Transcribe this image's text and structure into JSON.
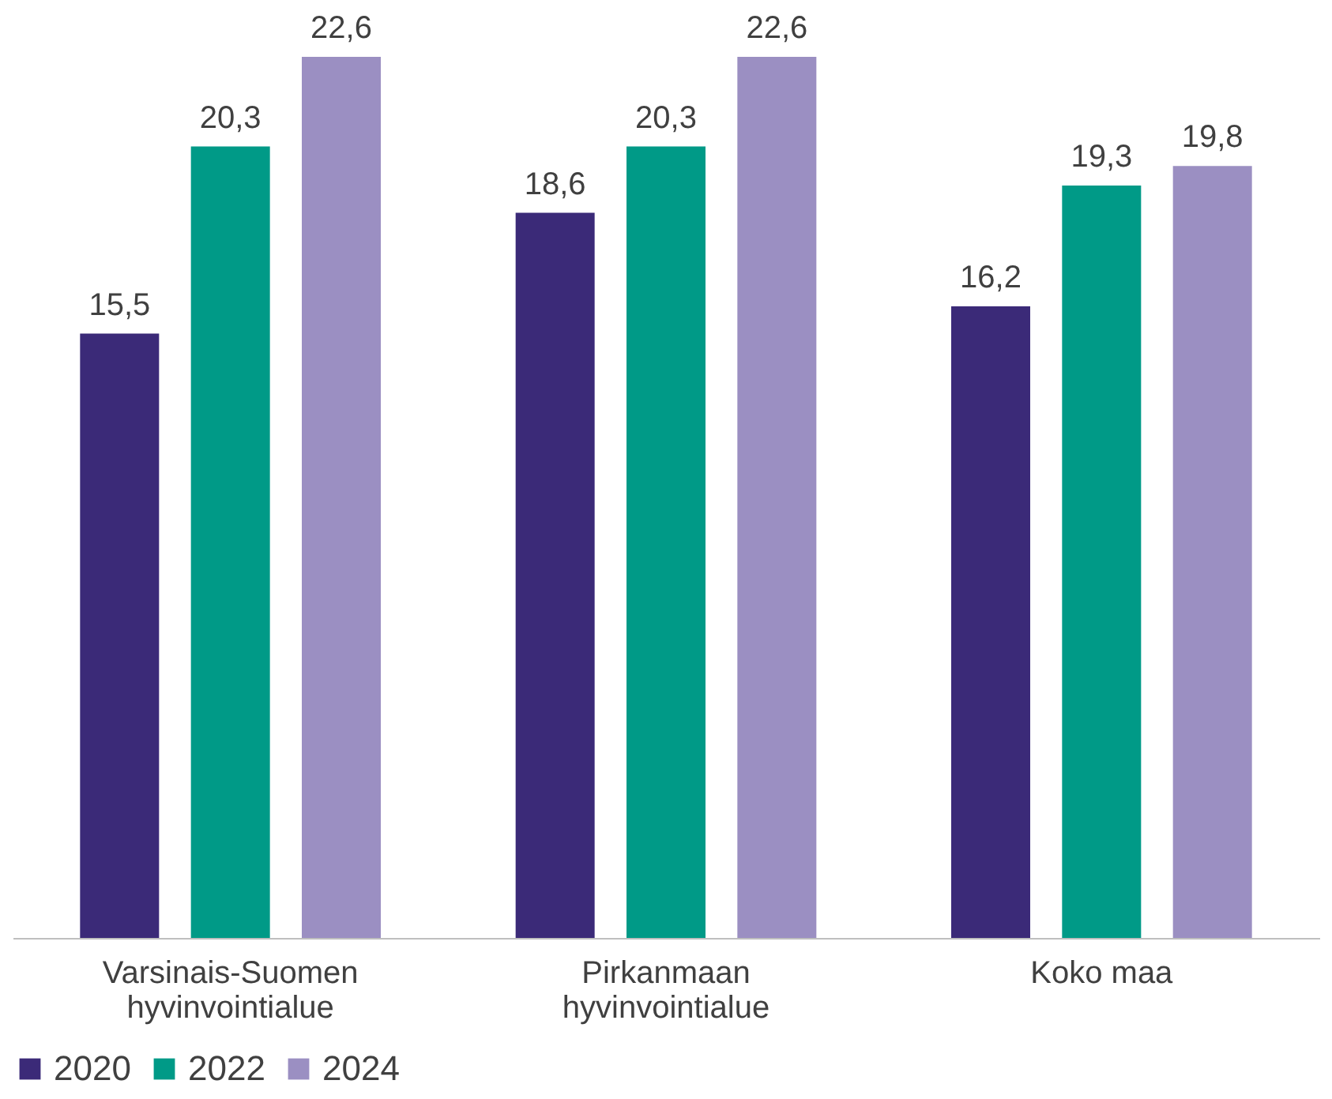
{
  "chart_data": {
    "type": "bar",
    "categories": [
      "Varsinais-Suomen hyvinvointialue",
      "Pirkanmaan hyvinvointialue",
      "Koko maa"
    ],
    "series": [
      {
        "name": "2020",
        "color": "#3b2a78",
        "values": [
          15.5,
          18.6,
          16.2
        ],
        "value_labels": [
          "15,5",
          "18,6",
          "16,2"
        ]
      },
      {
        "name": "2022",
        "color": "#009a87",
        "values": [
          20.3,
          20.3,
          19.3
        ],
        "value_labels": [
          "20,3",
          "20,3",
          "19,3"
        ]
      },
      {
        "name": "2024",
        "color": "#9b8fc2",
        "values": [
          22.6,
          22.6,
          19.8
        ],
        "value_labels": [
          "22,6",
          "22,6",
          "19,8"
        ]
      }
    ],
    "legend": "bottom",
    "grid": false
  }
}
